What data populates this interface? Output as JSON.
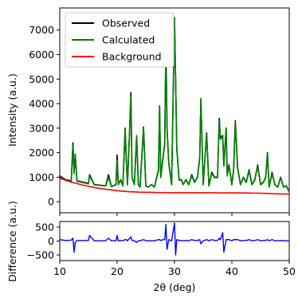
{
  "chart_data": [
    {
      "type": "line",
      "panel": "top",
      "xlabel": "",
      "ylabel": "Intensity (a.u.)",
      "xlim": [
        10,
        50
      ],
      "ylim": [
        -450,
        7900
      ],
      "y_ticks": [
        0,
        1000,
        2000,
        3000,
        4000,
        5000,
        6000,
        7000
      ],
      "y_tick_labels": [
        "0",
        "1000",
        "2000",
        "3000",
        "4000",
        "5000",
        "6000",
        "7000"
      ],
      "grid": false,
      "legend": "top-left",
      "series": [
        {
          "name": "Observed",
          "color": "#000000",
          "x": [
            10,
            11,
            12,
            12.3,
            12.5,
            12.7,
            13,
            14,
            15,
            15.2,
            16,
            18,
            18.5,
            19,
            19.8,
            20,
            20.2,
            20.6,
            21,
            21.4,
            21.6,
            21.8,
            22.2,
            22.4,
            22.6,
            23,
            23.4,
            23.7,
            24,
            24.6,
            25,
            25.4,
            26,
            26.5,
            27.2,
            27.4,
            27.6,
            28,
            28.3,
            28.5,
            28.7,
            29,
            29.5,
            30,
            30.2,
            30.4,
            30.8,
            31.2,
            31.5,
            32,
            32.5,
            33,
            33.5,
            34,
            34.4,
            34.6,
            35,
            35.6,
            36,
            36.5,
            37,
            37.5,
            37.8,
            38,
            38.4,
            38.6,
            39,
            39.2,
            39.5,
            40,
            40.3,
            40.6,
            41,
            41.5,
            42,
            42.5,
            43,
            43.5,
            44,
            44.5,
            45,
            45.5,
            45.9,
            46.2,
            46.5,
            47,
            47.5,
            48,
            48.5,
            49,
            49.5,
            50
          ],
          "y": [
            1050,
            900,
            850,
            2400,
            1200,
            1900,
            850,
            800,
            750,
            1100,
            700,
            650,
            1100,
            620,
            700,
            1900,
            700,
            900,
            650,
            3000,
            1700,
            700,
            3100,
            4450,
            1000,
            700,
            2650,
            700,
            600,
            3050,
            650,
            600,
            700,
            600,
            1300,
            3900,
            1000,
            1800,
            2400,
            6500,
            3000,
            1600,
            700,
            7500,
            4900,
            2200,
            900,
            900,
            700,
            900,
            700,
            1100,
            800,
            1000,
            1800,
            4200,
            700,
            2800,
            650,
            1200,
            1000,
            1000,
            3400,
            2600,
            2700,
            1500,
            3000,
            1100,
            1500,
            700,
            1300,
            3300,
            1400,
            700,
            1000,
            800,
            1300,
            700,
            900,
            1500,
            700,
            800,
            1000,
            2000,
            600,
            1200,
            700,
            600,
            1000,
            600,
            650,
            400
          ]
        },
        {
          "name": "Calculated",
          "color": "#008000",
          "x": [
            10,
            11,
            12,
            12.3,
            12.5,
            12.7,
            13,
            14,
            15,
            15.2,
            16,
            18,
            18.5,
            19,
            19.8,
            20,
            20.2,
            20.6,
            21,
            21.4,
            21.6,
            21.8,
            22.2,
            22.4,
            22.6,
            23,
            23.4,
            23.7,
            24,
            24.6,
            25,
            25.4,
            26,
            26.5,
            27.2,
            27.4,
            27.6,
            28,
            28.3,
            28.5,
            28.7,
            29,
            29.5,
            30,
            30.2,
            30.4,
            30.8,
            31.2,
            31.5,
            32,
            32.5,
            33,
            33.5,
            34,
            34.4,
            34.6,
            35,
            35.6,
            36,
            36.5,
            37,
            37.5,
            37.8,
            38,
            38.4,
            38.6,
            39,
            39.2,
            39.5,
            40,
            40.3,
            40.6,
            41,
            41.5,
            42,
            42.5,
            43,
            43.5,
            44,
            44.5,
            45,
            45.5,
            45.9,
            46.2,
            46.5,
            47,
            47.5,
            48,
            48.5,
            49,
            49.5,
            50
          ],
          "y": [
            1000,
            880,
            820,
            2300,
            1150,
            1950,
            830,
            780,
            730,
            1050,
            690,
            640,
            1000,
            610,
            690,
            1700,
            690,
            880,
            640,
            2950,
            1650,
            690,
            3000,
            4300,
            980,
            690,
            2700,
            690,
            590,
            3000,
            640,
            590,
            690,
            590,
            1250,
            3850,
            980,
            1750,
            2350,
            6400,
            2950,
            1550,
            690,
            7450,
            4850,
            2150,
            880,
            880,
            690,
            880,
            690,
            1050,
            780,
            980,
            1750,
            4200,
            690,
            2750,
            640,
            1150,
            980,
            980,
            3300,
            2550,
            2650,
            1450,
            2950,
            1050,
            1450,
            690,
            1250,
            3250,
            1350,
            690,
            980,
            780,
            1250,
            690,
            880,
            1450,
            690,
            780,
            980,
            1950,
            590,
            1150,
            690,
            590,
            980,
            590,
            640,
            390
          ]
        },
        {
          "name": "Background",
          "color": "#ff0000",
          "x": [
            10,
            12,
            14,
            16,
            18,
            20,
            22,
            24,
            26,
            28,
            30,
            32,
            34,
            36,
            38,
            40,
            42,
            44,
            46,
            48,
            50
          ],
          "y": [
            950,
            800,
            680,
            580,
            510,
            450,
            410,
            390,
            380,
            370,
            365,
            365,
            365,
            365,
            360,
            360,
            355,
            350,
            340,
            320,
            310
          ]
        }
      ]
    },
    {
      "type": "line",
      "panel": "bottom",
      "xlabel": "2θ (deg)",
      "ylabel": "Difference (a.u.)",
      "xlim": [
        10,
        50
      ],
      "ylim": [
        -700,
        700
      ],
      "x_ticks": [
        10,
        20,
        30,
        40,
        50
      ],
      "x_tick_labels": [
        "10",
        "20",
        "30",
        "40",
        "50"
      ],
      "y_ticks": [
        -500,
        0,
        500
      ],
      "y_tick_labels": [
        "−500",
        "0",
        "500"
      ],
      "grid": false,
      "series": [
        {
          "name": "",
          "color": "#0000ff",
          "x": [
            10,
            11,
            12,
            12.3,
            12.5,
            12.7,
            13,
            14,
            15,
            15.2,
            16,
            18,
            18.5,
            19,
            19.8,
            20,
            20.2,
            20.6,
            21,
            21.4,
            21.6,
            21.8,
            22.2,
            22.4,
            22.6,
            23,
            23.4,
            23.7,
            24,
            24.6,
            25,
            25.4,
            26,
            26.5,
            27.2,
            27.4,
            27.6,
            28,
            28.3,
            28.5,
            28.7,
            29,
            29.5,
            30,
            30.2,
            30.4,
            30.8,
            31.2,
            31.5,
            32,
            32.5,
            33,
            33.5,
            34,
            34.4,
            34.6,
            35,
            35.6,
            36,
            36.5,
            37,
            37.5,
            37.8,
            38,
            38.4,
            38.6,
            39,
            39.2,
            39.5,
            40,
            40.3,
            40.6,
            41,
            41.5,
            42,
            42.5,
            43,
            43.5,
            44,
            44.5,
            45,
            45.5,
            45.9,
            46.2,
            46.5,
            47,
            47.5,
            48,
            48.5,
            49,
            49.5,
            50
          ],
          "y": [
            50,
            20,
            30,
            100,
            -400,
            -50,
            20,
            20,
            20,
            200,
            10,
            10,
            100,
            10,
            10,
            200,
            10,
            20,
            10,
            50,
            50,
            10,
            100,
            150,
            20,
            10,
            -50,
            10,
            10,
            50,
            10,
            10,
            10,
            10,
            50,
            50,
            20,
            50,
            50,
            600,
            -300,
            50,
            10,
            650,
            -500,
            50,
            20,
            20,
            10,
            20,
            10,
            50,
            20,
            20,
            50,
            -100,
            10,
            50,
            10,
            50,
            20,
            20,
            100,
            50,
            300,
            -400,
            50,
            50,
            50,
            10,
            50,
            50,
            50,
            10,
            20,
            20,
            50,
            10,
            20,
            50,
            10,
            20,
            20,
            50,
            10,
            50,
            10,
            10,
            20,
            10,
            10,
            10
          ]
        }
      ]
    }
  ]
}
